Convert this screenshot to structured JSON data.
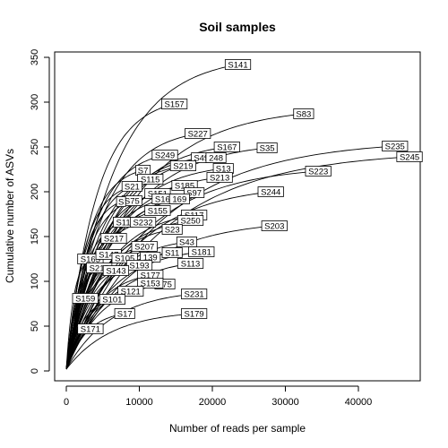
{
  "chart_data": {
    "type": "line",
    "title": "Soil samples",
    "xlabel": "Number of reads per sample",
    "ylabel": "Cumulative number of ASVs",
    "xlim": [
      0,
      47000
    ],
    "ylim": [
      0,
      350
    ],
    "xticks": [
      0,
      10000,
      20000,
      30000,
      40000
    ],
    "yticks": [
      0,
      50,
      100,
      150,
      200,
      250,
      300,
      350
    ],
    "grid": false,
    "legend": "none",
    "series": [
      {
        "name": "S141",
        "x_end": 23500,
        "y_end": 342
      },
      {
        "name": "S157",
        "x_end": 14800,
        "y_end": 298
      },
      {
        "name": "S83",
        "x_end": 32500,
        "y_end": 287
      },
      {
        "name": "S227",
        "x_end": 18000,
        "y_end": 265
      },
      {
        "name": "S167",
        "x_end": 22000,
        "y_end": 250
      },
      {
        "name": "S35",
        "x_end": 27500,
        "y_end": 249
      },
      {
        "name": "S235",
        "x_end": 45000,
        "y_end": 251
      },
      {
        "name": "S245",
        "x_end": 47000,
        "y_end": 239
      },
      {
        "name": "S249",
        "x_end": 13500,
        "y_end": 241
      },
      {
        "name": "S49",
        "x_end": 18500,
        "y_end": 238
      },
      {
        "name": "S248",
        "x_end": 20500,
        "y_end": 238
      },
      {
        "name": "S219",
        "x_end": 16000,
        "y_end": 229
      },
      {
        "name": "S13",
        "x_end": 21500,
        "y_end": 226
      },
      {
        "name": "S223",
        "x_end": 34500,
        "y_end": 223
      },
      {
        "name": "S7",
        "x_end": 10500,
        "y_end": 224
      },
      {
        "name": "S115",
        "x_end": 11500,
        "y_end": 214
      },
      {
        "name": "S213",
        "x_end": 21000,
        "y_end": 216
      },
      {
        "name": "S185",
        "x_end": 16200,
        "y_end": 207
      },
      {
        "name": "S21",
        "x_end": 9000,
        "y_end": 206
      },
      {
        "name": "S97",
        "x_end": 17500,
        "y_end": 199
      },
      {
        "name": "S244",
        "x_end": 28000,
        "y_end": 200
      },
      {
        "name": "S151",
        "x_end": 12500,
        "y_end": 198
      },
      {
        "name": "S165",
        "x_end": 13500,
        "y_end": 192
      },
      {
        "name": "S75",
        "x_end": 9000,
        "y_end": 190
      },
      {
        "name": "S5",
        "x_end": 7500,
        "y_end": 189
      },
      {
        "name": "S155",
        "x_end": 12500,
        "y_end": 179
      },
      {
        "name": "S169",
        "x_end": 15500,
        "y_end": 192
      },
      {
        "name": "S117",
        "x_end": 17500,
        "y_end": 174
      },
      {
        "name": "S250",
        "x_end": 17000,
        "y_end": 168
      },
      {
        "name": "S11",
        "x_end": 7800,
        "y_end": 166
      },
      {
        "name": "S232",
        "x_end": 10500,
        "y_end": 166
      },
      {
        "name": "S203",
        "x_end": 28500,
        "y_end": 162
      },
      {
        "name": "S23",
        "x_end": 14500,
        "y_end": 158
      },
      {
        "name": "S217",
        "x_end": 6500,
        "y_end": 148
      },
      {
        "name": "S207",
        "x_end": 10700,
        "y_end": 139
      },
      {
        "name": "S43",
        "x_end": 16500,
        "y_end": 144
      },
      {
        "name": "S181",
        "x_end": 18500,
        "y_end": 133
      },
      {
        "name": "S11",
        "x_end": 14500,
        "y_end": 132
      },
      {
        "name": "S163",
        "x_end": 3300,
        "y_end": 125
      },
      {
        "name": "S147",
        "x_end": 5800,
        "y_end": 130
      },
      {
        "name": "S105",
        "x_end": 8000,
        "y_end": 126
      },
      {
        "name": "S139",
        "x_end": 11500,
        "y_end": 127
      },
      {
        "name": "S113",
        "x_end": 17000,
        "y_end": 120
      },
      {
        "name": "S215",
        "x_end": 4500,
        "y_end": 115
      },
      {
        "name": "S193",
        "x_end": 10000,
        "y_end": 118
      },
      {
        "name": "S143",
        "x_end": 6800,
        "y_end": 112
      },
      {
        "name": "S177",
        "x_end": 11500,
        "y_end": 107
      },
      {
        "name": "S175",
        "x_end": 13500,
        "y_end": 97
      },
      {
        "name": "S153",
        "x_end": 11500,
        "y_end": 98
      },
      {
        "name": "S121",
        "x_end": 8800,
        "y_end": 89
      },
      {
        "name": "S231",
        "x_end": 17500,
        "y_end": 86
      },
      {
        "name": "S159",
        "x_end": 2600,
        "y_end": 81
      },
      {
        "name": "S101",
        "x_end": 6300,
        "y_end": 80
      },
      {
        "name": "S17",
        "x_end": 8000,
        "y_end": 64
      },
      {
        "name": "S179",
        "x_end": 17500,
        "y_end": 64
      },
      {
        "name": "S171",
        "x_end": 3300,
        "y_end": 47
      }
    ]
  },
  "labels": {
    "S141": "S141",
    "S157": "S157",
    "S83": "S83",
    "S227": "S227",
    "S167": "S167",
    "S35": "S35",
    "S235": "S235",
    "S245": "S245",
    "S249": "S249",
    "S49": "S49",
    "S248": "248",
    "S219": "S219",
    "S13": "S13",
    "S223": "S223",
    "S7": "S7",
    "S115": "S115",
    "S213": "S213",
    "S185": "S185",
    "S21": "S21",
    "S97": "S97",
    "S244": "S244",
    "S151": "S151",
    "S165": "S165",
    "S75": "S75",
    "S5": "S",
    "S155": "S155",
    "S169": "169",
    "S117": "S117",
    "S250": "S250",
    "S11": "S11",
    "S232": "S232",
    "S203": "S203",
    "S23": "S23",
    "S217": "S217",
    "S207": "S207",
    "S43": "S43",
    "S181": "S181",
    "S111": "S11",
    "S163": "S163",
    "S147": "S147",
    "S105": "S105",
    "S139": "139",
    "S113": "S113",
    "S215": "S215",
    "S193": "S193",
    "S143": "S143",
    "S177": "S177",
    "S175": "175",
    "S153": "S153",
    "S121": "S121",
    "S231": "S231",
    "S159": "S159",
    "S101": "S101",
    "S17": "S17",
    "S179": "S179",
    "S171": "S171"
  }
}
